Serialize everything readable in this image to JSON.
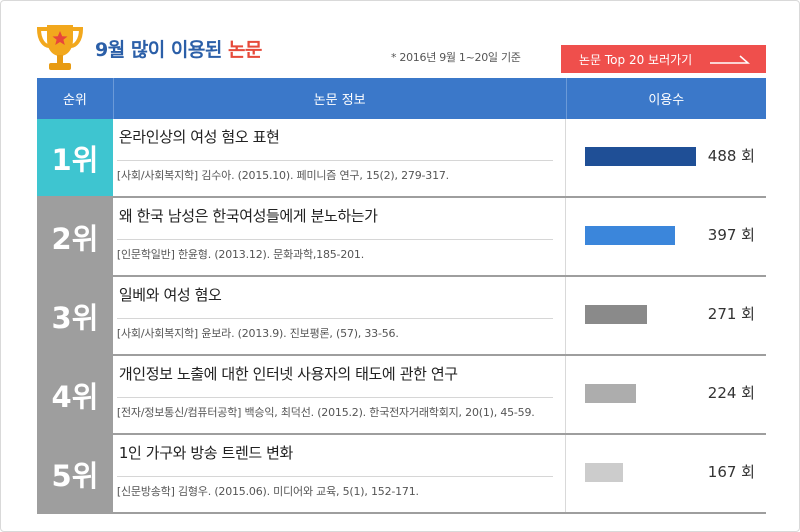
{
  "header": {
    "title_blue": "9월 많이 이용된 ",
    "title_red": "논문",
    "note": "* 2016년 9월 1~20일 기준",
    "top_button": "논문 Top 20 보러가기"
  },
  "table": {
    "columns": [
      "순위",
      "논문 정보",
      "이용수"
    ],
    "rows": [
      {
        "rank": "1위",
        "title": "온라인상의 여성 혐오 표현",
        "meta": "[사회/사회복지학] 김수아. (2015.10). 페미니즘 연구, 15(2), 279-317.",
        "count": "488 회",
        "value": 488,
        "rank_color": "#3ec5d0",
        "bar_color": "#1f4f96"
      },
      {
        "rank": "2위",
        "title": "왜 한국 남성은 한국여성들에게 분노하는가",
        "meta": "[인문학일반] 한윤형. (2013.12). 문화과학,185-201.",
        "count": "397 회",
        "value": 397,
        "rank_color": "#9e9e9e",
        "bar_color": "#3b86db"
      },
      {
        "rank": "3위",
        "title": "일베와 여성 혐오",
        "meta": "[사회/사회복지학] 윤보라. (2013.9). 진보평론, (57), 33-56.",
        "count": "271 회",
        "value": 271,
        "rank_color": "#9e9e9e",
        "bar_color": "#8a8a8a"
      },
      {
        "rank": "4위",
        "title": "개인정보 노출에 대한 인터넷 사용자의 태도에 관한 연구",
        "meta": "[전자/정보통신/컴퓨터공학] 백승익, 최덕선. (2015.2). 한국전자거래학회지, 20(1), 45-59.",
        "count": "224 회",
        "value": 224,
        "rank_color": "#9e9e9e",
        "bar_color": "#adadad"
      },
      {
        "rank": "5위",
        "title": "1인 가구와 방송 트렌드 변화",
        "meta": "[신문방송학] 김형우. (2015.06). 미디어와 교육, 5(1), 152-171.",
        "count": "167 회",
        "value": 167,
        "rank_color": "#9e9e9e",
        "bar_color": "#cccccc"
      }
    ]
  }
}
